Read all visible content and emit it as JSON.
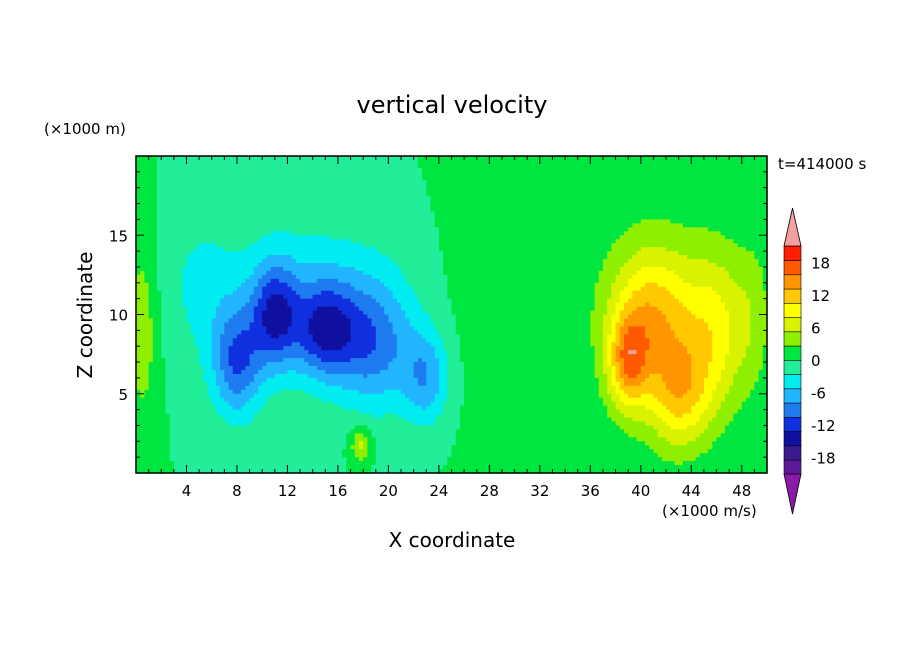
{
  "chart_data": {
    "type": "heatmap",
    "title": "vertical velocity",
    "xlabel": "X coordinate",
    "ylabel": "Z coordinate",
    "x_unit_label": "(×1000 m/s)",
    "y_unit_label": "(×1000 m)",
    "time_label": "t=414000 s",
    "xlim": [
      0,
      50
    ],
    "ylim": [
      0,
      20
    ],
    "x_ticks": [
      "4",
      "8",
      "12",
      "16",
      "20",
      "24",
      "28",
      "32",
      "36",
      "40",
      "44",
      "48"
    ],
    "y_ticks": [
      "5",
      "10",
      "15"
    ],
    "colorbar": {
      "tick_labels": [
        "18",
        "12",
        "6",
        "0",
        "-6",
        "-12",
        "-18"
      ],
      "levels": [
        -21,
        -18,
        -15,
        -12,
        -9,
        -6,
        -3,
        0,
        3,
        6,
        9,
        12,
        15,
        18,
        21
      ],
      "colors": [
        "#5b1a9a",
        "#3a1a8c",
        "#1010a0",
        "#1030e0",
        "#1f7bf0",
        "#22b4ff",
        "#00ecf0",
        "#22ee9a",
        "#00e640",
        "#8ef000",
        "#d8f200",
        "#ffff00",
        "#ffc800",
        "#ff9600",
        "#ff5a00",
        "#ff1e00",
        "#f5a0a0"
      ],
      "under_color": "#8a1aa8",
      "over_color": "#f5a0a0"
    },
    "field_features": [
      {
        "x": 8,
        "z": 7,
        "w": -11,
        "sx": 2.0,
        "sz": 3.5
      },
      {
        "x": 11,
        "z": 10,
        "w": -12,
        "sx": 1.8,
        "sz": 3.2
      },
      {
        "x": 15,
        "z": 9,
        "w": -12,
        "sx": 2.5,
        "sz": 3.0
      },
      {
        "x": 19,
        "z": 8,
        "w": -9,
        "sx": 3.0,
        "sz": 4.0
      },
      {
        "x": 23,
        "z": 6,
        "w": -8,
        "sx": 1.8,
        "sz": 3.0
      },
      {
        "x": 14,
        "z": 11,
        "w": -5,
        "sx": 7.0,
        "sz": 5.0
      },
      {
        "x": 5,
        "z": 12,
        "w": -3,
        "sx": 3.0,
        "sz": 5.0
      },
      {
        "x": 17.8,
        "z": 1.8,
        "w": 7,
        "sx": 0.8,
        "sz": 1.1
      },
      {
        "x": 0.5,
        "z": 9,
        "w": 5,
        "sx": 1.2,
        "sz": 6.0
      },
      {
        "x": 31,
        "z": 3,
        "w": 2,
        "sx": 1.0,
        "sz": 2.5
      },
      {
        "x": 39,
        "z": 7,
        "w": 13,
        "sx": 1.6,
        "sz": 3.0
      },
      {
        "x": 41,
        "z": 10,
        "w": 10,
        "sx": 3.0,
        "sz": 4.0
      },
      {
        "x": 43,
        "z": 5,
        "w": 11,
        "sx": 2.5,
        "sz": 3.5
      },
      {
        "x": 46,
        "z": 9,
        "w": 8,
        "sx": 2.5,
        "sz": 5.0
      },
      {
        "x": 41,
        "z": 10,
        "w": 4,
        "sx": 6.0,
        "sz": 7.0
      },
      {
        "x": 49,
        "z": 10,
        "w": 3,
        "sx": 1.5,
        "sz": 5.0
      },
      {
        "x": 27,
        "z": 10,
        "w": 1,
        "sx": 4.0,
        "sz": 8.0
      }
    ]
  }
}
